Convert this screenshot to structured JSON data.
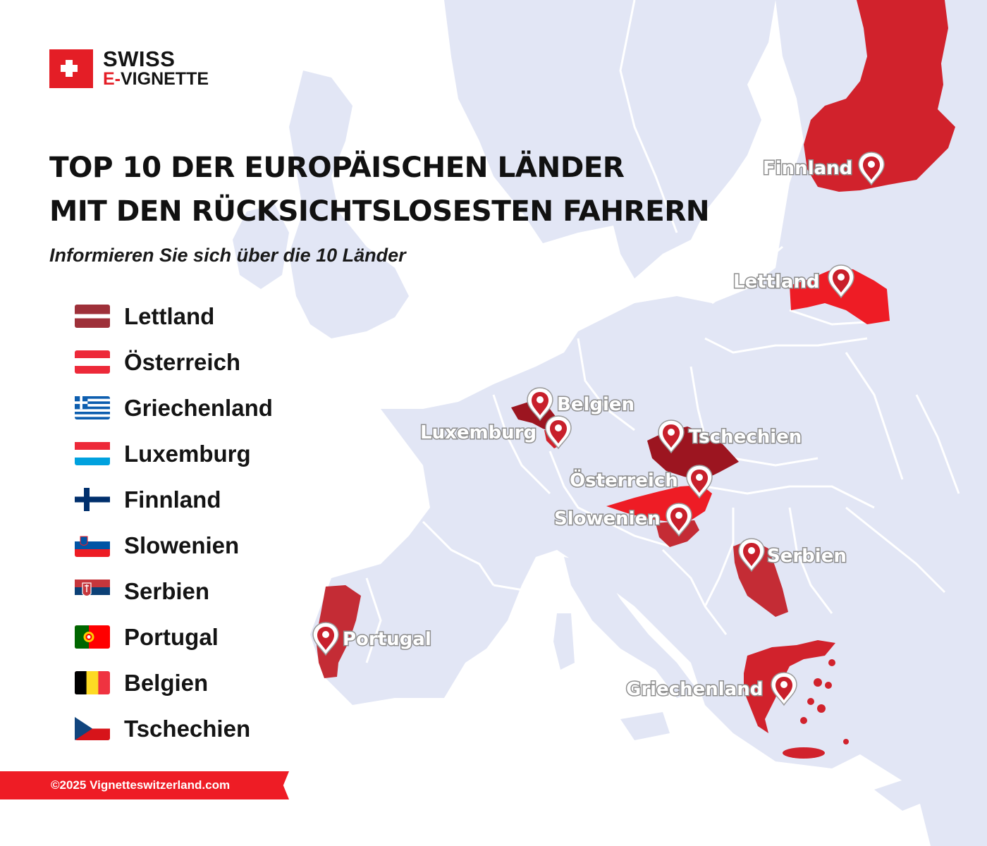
{
  "brand": {
    "line1": "SWISS",
    "line2_prefix": "E-",
    "line2_rest": "VIGNETTE",
    "color": "#e41e26"
  },
  "title": {
    "line1": "TOP 10 DER EUROPÄISCHEN LÄNDER",
    "line2": "MIT DEN RÜCKSICHTSLOSESTEN FAHRERN"
  },
  "subtitle": "Informieren Sie sich über die 10 Länder",
  "legend": [
    {
      "name": "Lettland",
      "flag": "latvia-flag"
    },
    {
      "name": "Österreich",
      "flag": "austria-flag"
    },
    {
      "name": "Griechenland",
      "flag": "greece-flag"
    },
    {
      "name": "Luxemburg",
      "flag": "luxembourg-flag"
    },
    {
      "name": "Finnland",
      "flag": "finland-flag"
    },
    {
      "name": "Slowenien",
      "flag": "slovenia-flag"
    },
    {
      "name": "Serbien",
      "flag": "serbia-flag"
    },
    {
      "name": "Portugal",
      "flag": "portugal-flag"
    },
    {
      "name": "Belgien",
      "flag": "belgium-flag"
    },
    {
      "name": "Tschechien",
      "flag": "czechia-flag"
    }
  ],
  "map_labels": {
    "finnland": "Finnland",
    "lettland": "Lettland",
    "belgien": "Belgien",
    "luxemburg": "Luxemburg",
    "tschechien": "Tschechien",
    "oesterreich": "Österreich",
    "slowenien": "Slowenien",
    "serbien": "Serbien",
    "portugal": "Portugal",
    "griechenland": "Griechenland"
  },
  "map_colors": {
    "land": "#e2e6f5",
    "border": "#ffffff",
    "highlight": "#d1222c",
    "highlight_bright": "#ee1c25",
    "highlight_dark": "#9c1520",
    "highlight_mid": "#c42c35"
  },
  "footer": "©2025 Vignetteswitzerland.com"
}
